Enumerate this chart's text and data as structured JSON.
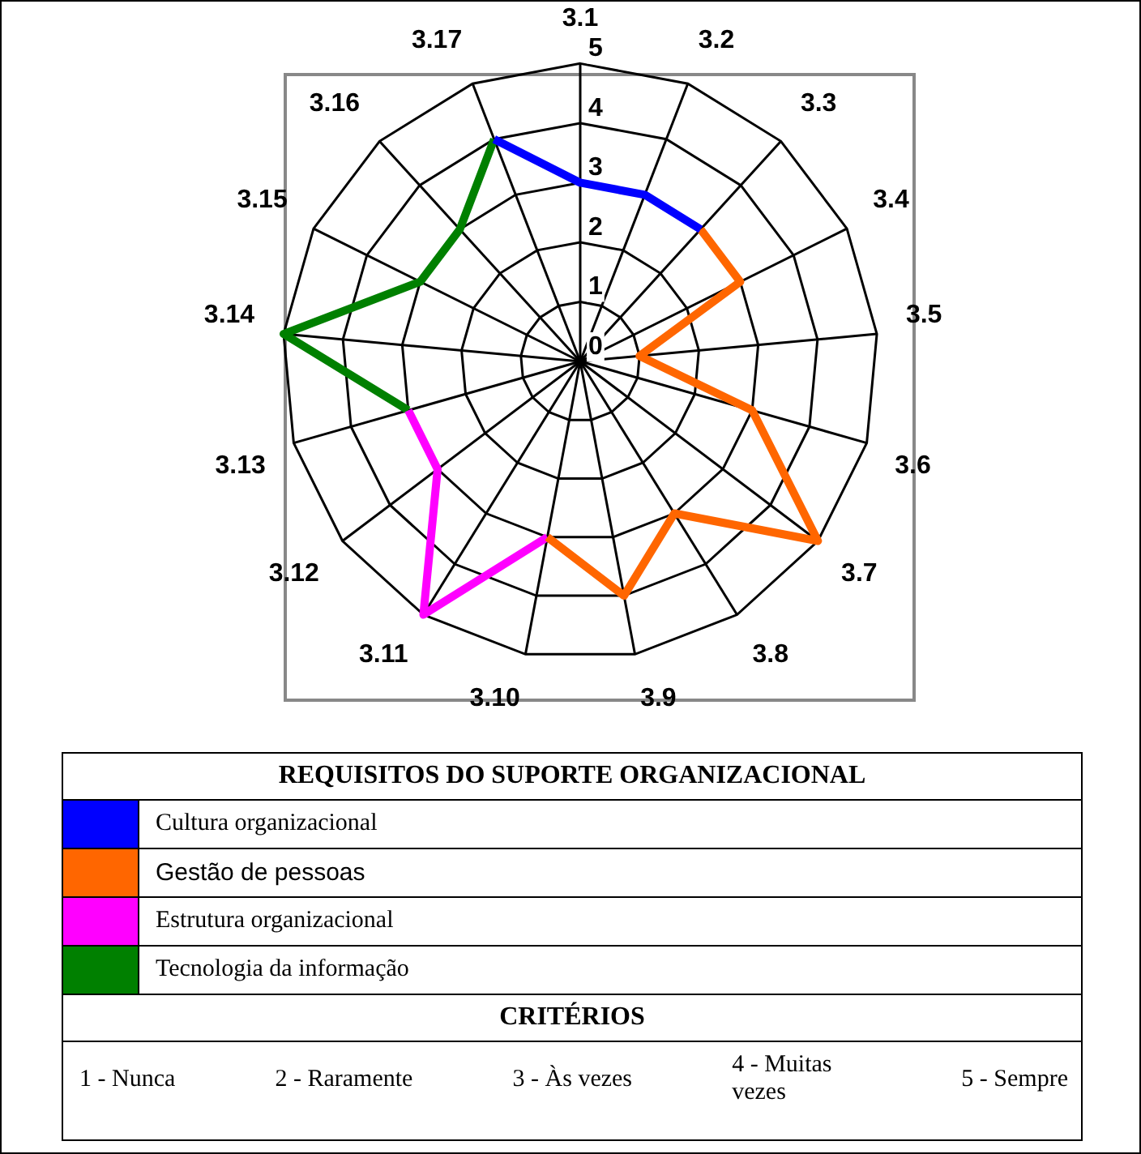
{
  "chart_data": {
    "type": "radar",
    "categories": [
      "3.1",
      "3.2",
      "3.3",
      "3.4",
      "3.5",
      "3.6",
      "3.7",
      "3.8",
      "3.9",
      "3.10",
      "3.11",
      "3.12",
      "3.13",
      "3.14",
      "3.15",
      "3.16",
      "3.17"
    ],
    "series": [
      {
        "name": "Cultura organizacional",
        "color": "#0000ff",
        "values": [
          3,
          3,
          3,
          null,
          null,
          null,
          null,
          null,
          null,
          null,
          null,
          null,
          null,
          null,
          null,
          null,
          4
        ]
      },
      {
        "name": "Gestão de pessoas",
        "color": "#ff6600",
        "values": [
          null,
          null,
          3,
          3,
          1,
          3,
          5,
          3,
          4,
          3,
          null,
          null,
          null,
          null,
          null,
          null,
          null
        ]
      },
      {
        "name": "Estrutura organizacional",
        "color": "#ff00ff",
        "values": [
          null,
          null,
          null,
          null,
          null,
          null,
          null,
          null,
          null,
          3,
          5,
          3,
          3,
          null,
          null,
          null,
          null
        ]
      },
      {
        "name": "Tecnologia da informação",
        "color": "#008000",
        "values": [
          null,
          null,
          null,
          null,
          null,
          null,
          null,
          null,
          null,
          null,
          null,
          null,
          3,
          5,
          3,
          3,
          4
        ]
      }
    ],
    "ylim": [
      0,
      5
    ],
    "yticks": [
      0,
      1,
      2,
      3,
      4,
      5
    ],
    "grid": true,
    "marker": "none",
    "legend": "bottom",
    "legend_title": "REQUISITOS DO SUPORTE ORGANIZACIONAL",
    "annotations": [
      "CRITÉRIOS",
      "1 - Nunca",
      "2 - Raramente",
      "3 - Às vezes",
      "4 - Muitas vezes",
      "5 - Sempre"
    ]
  }
}
